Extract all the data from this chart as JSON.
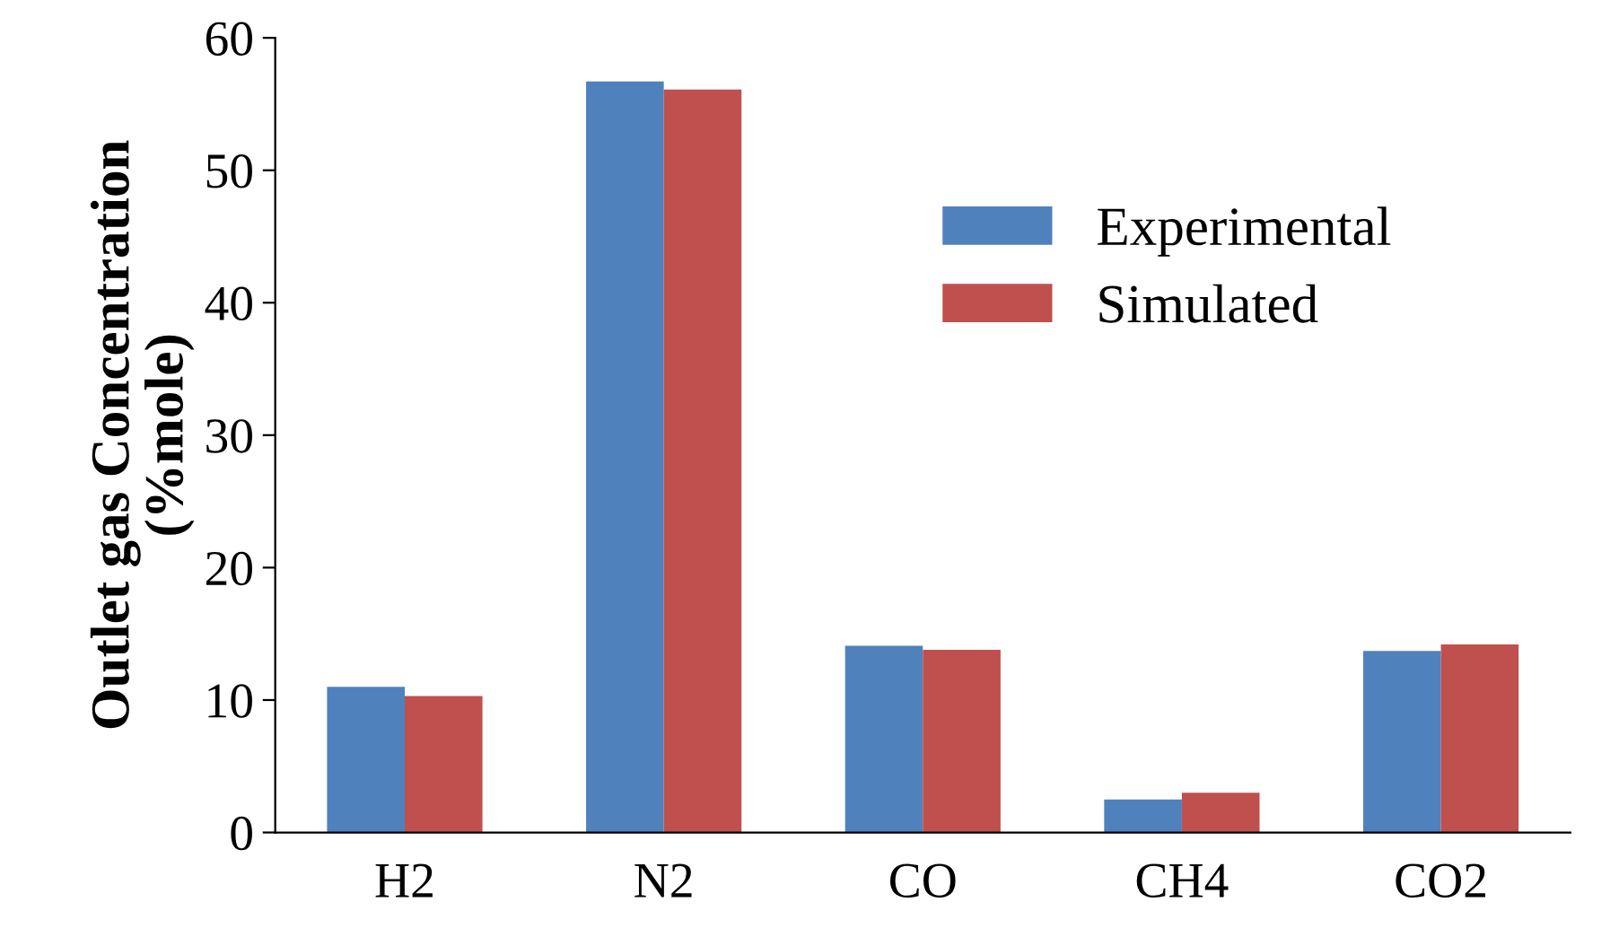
{
  "chart_data": {
    "type": "bar",
    "ylabel": "Outlet gas Concentration\n(%mole)",
    "categories": [
      "H2",
      "N2",
      "CO",
      "CH4",
      "CO2"
    ],
    "series": [
      {
        "name": "Experimental",
        "color": "#4f81bd",
        "values": [
          11.0,
          56.7,
          14.1,
          2.5,
          13.7
        ]
      },
      {
        "name": "Simulated",
        "color": "#c0504d",
        "values": [
          10.3,
          56.1,
          13.8,
          3.0,
          14.2
        ]
      }
    ],
    "ylim": [
      0,
      60
    ],
    "yticks": [
      0,
      10,
      20,
      30,
      40,
      50,
      60
    ],
    "grid": false,
    "legend": "top right"
  }
}
